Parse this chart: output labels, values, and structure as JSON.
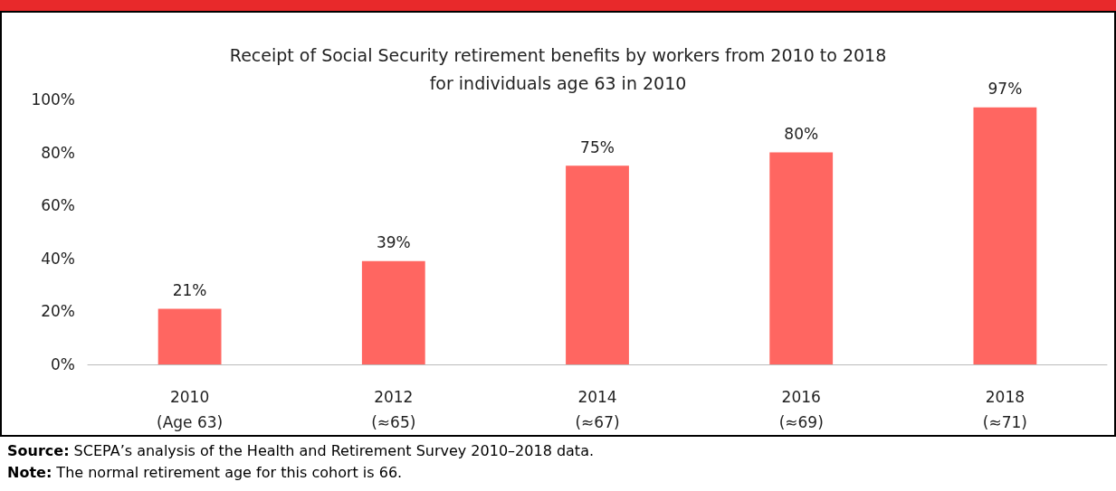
{
  "chart_data": {
    "type": "bar",
    "title": "Receipt of Social Security retirement benefits by workers from 2010 to 2018\nfor individuals age 63 in 2010",
    "categories": [
      "2010\n(Age 63)",
      "2012\n(≈65)",
      "2014\n(≈67)",
      "2016\n(≈69)",
      "2018\n(≈71)"
    ],
    "values": [
      21,
      39,
      75,
      80,
      97
    ],
    "value_labels": [
      "21%",
      "39%",
      "75%",
      "80%",
      "97%"
    ],
    "color": "#ff6661",
    "ylim": [
      0,
      100
    ],
    "yticks": [
      {
        "value": 0,
        "label": "0%"
      },
      {
        "value": 20,
        "label": "20%"
      },
      {
        "value": 40,
        "label": "40%"
      },
      {
        "value": 60,
        "label": "60%"
      },
      {
        "value": 80,
        "label": "80%"
      },
      {
        "value": 100,
        "label": "100%"
      }
    ],
    "grid": false,
    "annotations": [
      "Source: SCEPA’s analysis of the Health and Retirement Survey 2010–2018 data.",
      "Note: The normal retirement age for this cohort is 66."
    ]
  }
}
